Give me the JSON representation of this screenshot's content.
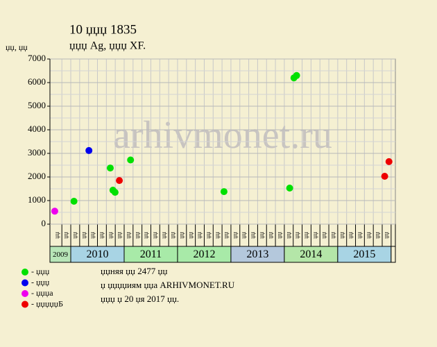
{
  "chart_data": {
    "type": "scatter",
    "title": "10 џџџ 1835",
    "subtitle": "џџџ Ag, џџџ XF.",
    "y_label": "џџ, џџ",
    "watermark": "arhivmonet.ru",
    "xlim": [
      2009.61,
      2016.08
    ],
    "ylim": [
      0,
      7000
    ],
    "yticks": [
      0,
      1000,
      2000,
      3000,
      4000,
      5000,
      6000,
      7000
    ],
    "yminor": [
      500,
      1500,
      2500,
      3500,
      4500,
      5500,
      6500
    ],
    "grid": true,
    "year_bands": {
      "labels": [
        "2009",
        "2010",
        "2011",
        "2012",
        "2013",
        "2014",
        "2015"
      ],
      "edges": [
        2009.61,
        2010,
        2011,
        2012,
        2013,
        2014,
        2015,
        2016
      ],
      "colors": [
        "#b8e6b8",
        "#a8d4e4",
        "#a8eaa8",
        "#a8eaa8",
        "#b4c8dc",
        "#b4e6a8",
        "#a8d4e4"
      ]
    },
    "month_labels": [
      "џџ",
      "џџ",
      "џџ",
      "џџ",
      "џџ",
      "џџ",
      "џџ",
      "џџ",
      "џџ",
      "џџ",
      "џџ",
      "џџ",
      "џџ",
      "џџ",
      "џџ",
      "џџ",
      "џџ",
      "џџ",
      "џџ",
      "џџ",
      "џџ",
      "џџ",
      "џџ",
      "џџ",
      "џџ",
      "џџ",
      "џџ",
      "џџ",
      "џџ",
      "џџ",
      "џџ",
      "џџ",
      "џџ",
      "џџ",
      "џџ",
      "џџ",
      "џџ",
      "џџ"
    ],
    "series": [
      {
        "name": "- џџџ",
        "color": "#00e000",
        "x": [
          2010.06,
          2010.74,
          2010.79,
          2010.83,
          2011.12,
          2012.87,
          2014.1,
          2014.18,
          2014.23
        ],
        "values": [
          970,
          2380,
          1440,
          1350,
          2720,
          1380,
          1530,
          6200,
          6300
        ]
      },
      {
        "name": "- џџџ",
        "color": "#0000ee",
        "x": [
          2010.34
        ],
        "values": [
          3120
        ]
      },
      {
        "name": "- џџџа",
        "color": "#ee00ee",
        "x": [
          2009.7
        ],
        "values": [
          550
        ]
      },
      {
        "name": "- џџџџџБ",
        "color": "#ee0000",
        "x": [
          2010.91,
          2015.88,
          2015.96
        ],
        "values": [
          1850,
          2030,
          2650
        ]
      }
    ],
    "notes": [
      "џџняя џџ 2477 џџ",
      "џ џџџџиям џџа ARHIVMONET.RU",
      "џџџ џ 20 џя 2017 џџ."
    ]
  }
}
